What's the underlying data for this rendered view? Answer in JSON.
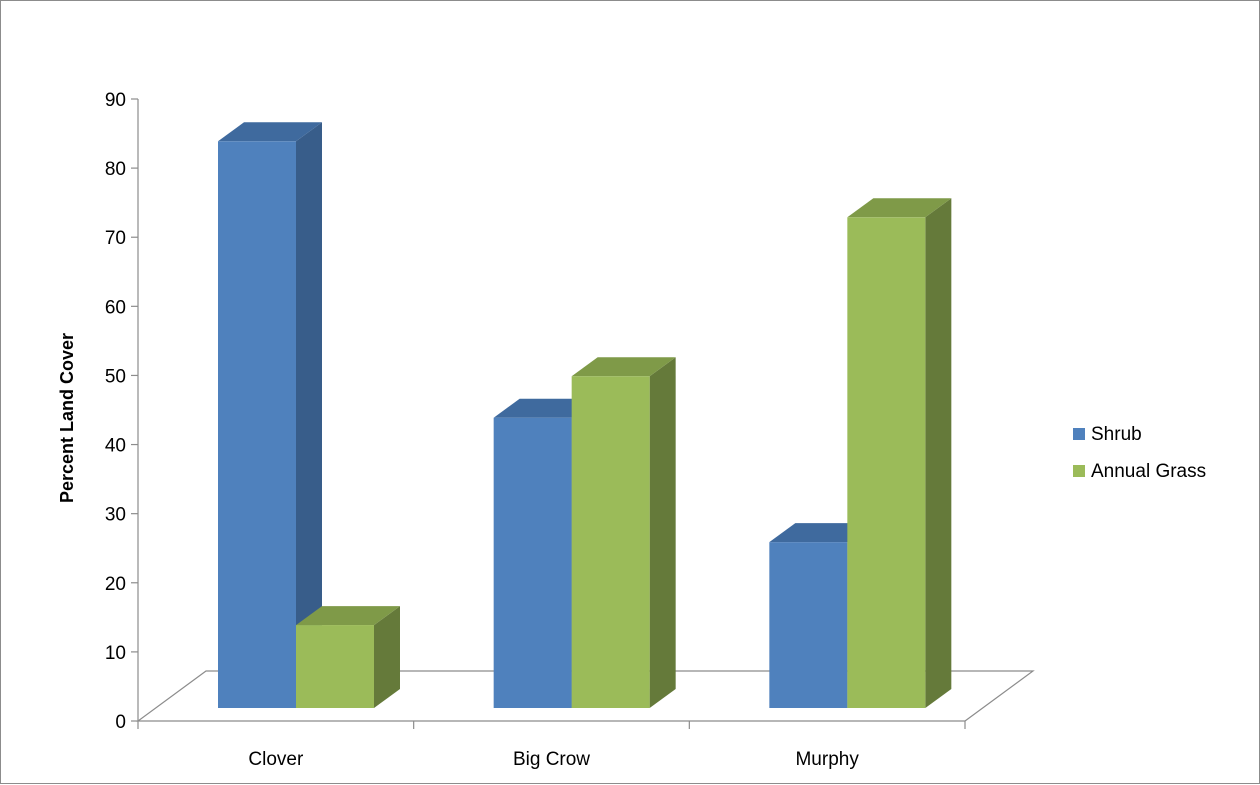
{
  "chart_data": {
    "type": "bar",
    "style": "3d-clustered-column",
    "title": "",
    "xlabel": "",
    "ylabel": "Percent Land Cover",
    "ylim": [
      0,
      90
    ],
    "yticks": [
      0,
      10,
      20,
      30,
      40,
      50,
      60,
      70,
      80,
      90
    ],
    "grid": false,
    "legend_position": "right",
    "categories": [
      "Clover",
      "Big Crow",
      "Murphy"
    ],
    "series": [
      {
        "name": "Shrub",
        "values": [
          82,
          42,
          24
        ],
        "color": "#4F81BD",
        "side_color": "#385D8A",
        "top_color": "#3F6A9E"
      },
      {
        "name": "Annual Grass",
        "values": [
          12,
          48,
          71
        ],
        "color": "#9BBB59",
        "side_color": "#657A3A",
        "top_color": "#7F9A48"
      }
    ]
  }
}
